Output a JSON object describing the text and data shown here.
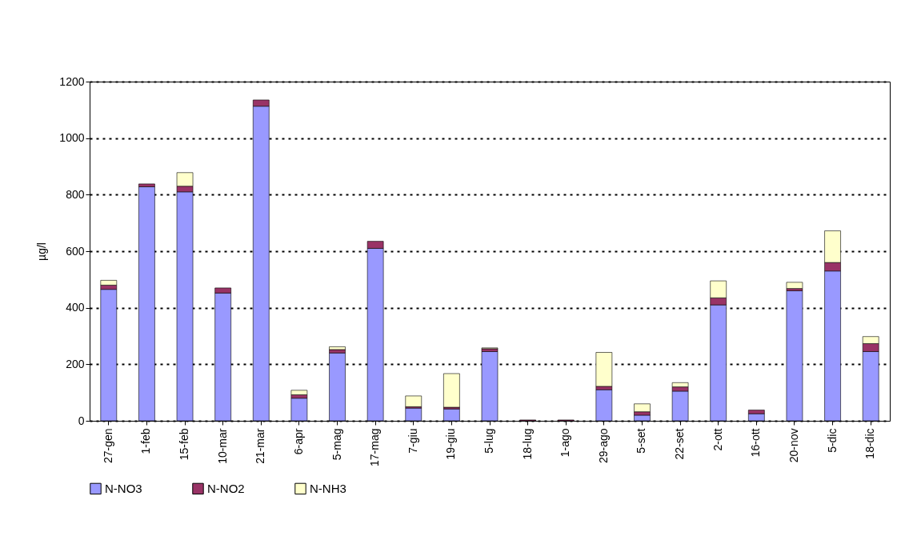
{
  "chart_data": {
    "type": "bar",
    "stacked": true,
    "ylabel": "µg/l",
    "categories": [
      "27-gen",
      "1-feb",
      "15-feb",
      "10-mar",
      "21-mar",
      "6-apr",
      "5-mag",
      "17-mag",
      "7-giu",
      "19-giu",
      "5-lug",
      "18-lug",
      "1-ago",
      "29-ago",
      "5-set",
      "22-set",
      "2-ott",
      "16-ott",
      "20-nov",
      "5-dic",
      "18-dic"
    ],
    "series": [
      {
        "name": "N-NO3",
        "color": "#9999ff",
        "values": [
          465,
          828,
          810,
          452,
          1113,
          80,
          240,
          610,
          45,
          42,
          245,
          null,
          null,
          110,
          20,
          105,
          410,
          25,
          460,
          530,
          245
        ]
      },
      {
        "name": "N-NO2",
        "color": "#993366",
        "values": [
          15,
          10,
          20,
          18,
          22,
          12,
          12,
          25,
          5,
          6,
          10,
          3,
          3,
          12,
          12,
          15,
          25,
          13,
          8,
          30,
          28
        ]
      },
      {
        "name": "N-NH3",
        "color": "#ffffcc",
        "values": [
          17,
          null,
          48,
          null,
          null,
          16,
          10,
          null,
          38,
          119,
          3,
          null,
          null,
          120,
          28,
          15,
          60,
          null,
          22,
          112,
          25
        ]
      }
    ],
    "ylim": [
      0,
      1200
    ],
    "yticks": [
      0,
      200,
      400,
      600,
      800,
      {
        "value": 1000,
        "label": "1000"
      },
      {
        "value": 1200,
        "label": "1200"
      }
    ],
    "grid": "y",
    "legend": "bottom"
  }
}
